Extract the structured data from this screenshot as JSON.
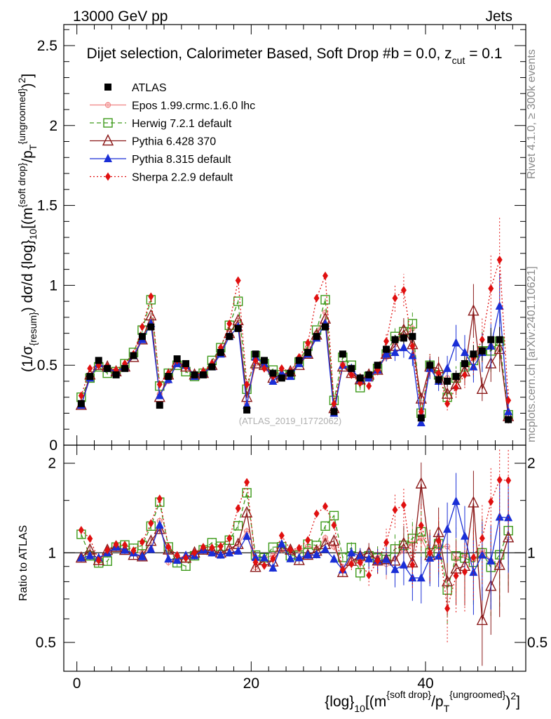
{
  "header": {
    "energy": "13000 GeV pp",
    "process": "Jets"
  },
  "chart_data": {
    "type": "scatter",
    "title": "Dijet selection, Calorimeter Based, Soft Drop #b = 0.0, z_cut = 0.1",
    "title_parts": {
      "main": "Dijet selection, Calorimeter Based, Soft Drop #b",
      "eq": "= 0.0, z",
      "sub": "cut",
      "end": "= 0.1"
    },
    "ylabel_main": "(1/σ{resum}) dσ/d {log}10[(m{soft drop}/pT{ungroomed})2]",
    "ylabel_parts": {
      "a": "(1/σ",
      "b": "{resum}",
      "c": ") dσ/d {log}",
      "d": "10",
      "e": "[(m",
      "f": "{soft drop}",
      "g": "/p",
      "h": "T",
      "i": "{ungroomed}",
      "j": ")",
      "k": "2",
      "l": "]"
    },
    "ylabel_ratio": "Ratio to ATLAS",
    "xlabel_parts": {
      "a": "{log}",
      "b": "10",
      "c": "[(m",
      "d": "{soft drop}",
      "e": "/p",
      "f": "T",
      "g": "{ungroomed}",
      "h": ")",
      "i": "2",
      "j": "]"
    },
    "xlim": [
      -1.5,
      51.5
    ],
    "ylim_main": [
      0,
      2.5
    ],
    "ylim_ratio": [
      0.4,
      2.3
    ],
    "x_ticks": [
      "0",
      "20",
      "40"
    ],
    "y_ticks_main": [
      "0",
      "0.5",
      "1",
      "1.5",
      "2",
      "2.5"
    ],
    "y_ticks_ratio": [
      "0.5",
      "1",
      "2"
    ],
    "watermark": "(ATLAS_2019_I1772062)",
    "side_text_top": "Rivet 4.1.0, ≥ 300k events",
    "side_text_bottom": "mcplots.cern.ch [arXiv:2401.10621]",
    "x": [
      0.5,
      1.5,
      2.5,
      3.5,
      4.5,
      5.5,
      6.5,
      7.5,
      8.5,
      9.5,
      10.5,
      11.5,
      12.5,
      13.5,
      14.5,
      15.5,
      16.5,
      17.5,
      18.5,
      19.5,
      20.5,
      21.5,
      22.5,
      23.5,
      24.5,
      25.5,
      26.5,
      27.5,
      28.5,
      29.5,
      30.5,
      31.5,
      32.5,
      33.5,
      34.5,
      35.5,
      36.5,
      37.5,
      38.5,
      39.5,
      40.5,
      41.5,
      42.5,
      43.5,
      44.5,
      45.5,
      46.5,
      47.5,
      48.5,
      49.5
    ],
    "data": {
      "name": "ATLAS",
      "values": [
        0.26,
        0.43,
        0.53,
        0.48,
        0.44,
        0.48,
        0.56,
        0.68,
        0.74,
        0.25,
        0.43,
        0.54,
        0.51,
        0.44,
        0.44,
        0.49,
        0.58,
        0.68,
        0.73,
        0.22,
        0.57,
        0.53,
        0.45,
        0.42,
        0.45,
        0.53,
        0.58,
        0.68,
        0.74,
        0.21,
        0.57,
        0.48,
        0.42,
        0.44,
        0.5,
        0.6,
        0.66,
        0.67,
        0.68,
        0.17,
        0.5,
        0.41,
        0.4,
        0.43,
        0.51,
        0.57,
        0.59,
        0.66,
        0.66,
        0.16
      ]
    },
    "series": [
      {
        "name": "Epos 1.99.crmc.1.6.0 lhc",
        "color": "#f08080",
        "style": "solid",
        "marker": "cross",
        "values": [
          0.25,
          0.42,
          0.5,
          0.48,
          0.46,
          0.49,
          0.56,
          0.68,
          0.76,
          0.32,
          0.4,
          0.51,
          0.49,
          0.44,
          0.45,
          0.5,
          0.58,
          0.7,
          0.78,
          0.26,
          0.51,
          0.51,
          0.44,
          0.43,
          0.46,
          0.54,
          0.61,
          0.7,
          0.83,
          0.22,
          0.51,
          0.45,
          0.39,
          0.42,
          0.48,
          0.55,
          0.63,
          0.68,
          0.73,
          0.19,
          0.49,
          0.43,
          0.42,
          0.41,
          0.5,
          0.54,
          0.6,
          0.62,
          0.6,
          0.18
        ]
      },
      {
        "name": "Herwig 7.2.1 default",
        "color": "#3d9a1a",
        "style": "dashed",
        "marker": "square-open",
        "values": [
          0.3,
          0.42,
          0.49,
          0.45,
          0.46,
          0.51,
          0.58,
          0.72,
          0.91,
          0.37,
          0.45,
          0.5,
          0.46,
          0.43,
          0.45,
          0.53,
          0.61,
          0.75,
          0.9,
          0.35,
          0.56,
          0.51,
          0.47,
          0.44,
          0.44,
          0.52,
          0.62,
          0.72,
          0.91,
          0.28,
          0.55,
          0.5,
          0.36,
          0.43,
          0.48,
          0.57,
          0.68,
          0.71,
          0.76,
          0.2,
          0.5,
          0.44,
          0.3,
          0.42,
          0.49,
          0.53,
          0.59,
          0.59,
          0.65,
          0.19
        ]
      },
      {
        "name": "Pythia 6.428 370",
        "color": "#8b1a1a",
        "style": "solid",
        "marker": "triangle-open",
        "values": [
          0.25,
          0.44,
          0.5,
          0.49,
          0.46,
          0.49,
          0.55,
          0.66,
          0.81,
          0.3,
          0.44,
          0.52,
          0.49,
          0.44,
          0.45,
          0.5,
          0.58,
          0.7,
          0.78,
          0.3,
          0.51,
          0.5,
          0.42,
          0.44,
          0.46,
          0.5,
          0.57,
          0.69,
          0.79,
          0.23,
          0.49,
          0.45,
          0.41,
          0.44,
          0.47,
          0.57,
          0.62,
          0.72,
          0.63,
          0.29,
          0.49,
          0.48,
          0.32,
          0.38,
          0.46,
          0.84,
          0.35,
          0.51,
          0.6,
          0.18
        ]
      },
      {
        "name": "Pythia 8.315 default",
        "color": "#1a2ed6",
        "style": "solid",
        "marker": "triangle",
        "values": [
          0.25,
          0.42,
          0.51,
          0.48,
          0.46,
          0.49,
          0.56,
          0.66,
          0.76,
          0.31,
          0.41,
          0.51,
          0.5,
          0.43,
          0.45,
          0.49,
          0.57,
          0.68,
          0.74,
          0.25,
          0.55,
          0.51,
          0.4,
          0.45,
          0.43,
          0.51,
          0.57,
          0.67,
          0.76,
          0.2,
          0.5,
          0.48,
          0.41,
          0.42,
          0.47,
          0.57,
          0.58,
          0.61,
          0.56,
          0.14,
          0.48,
          0.4,
          0.48,
          0.64,
          0.58,
          0.49,
          0.58,
          0.62,
          0.87,
          0.21
        ]
      },
      {
        "name": "Sherpa 2.2.9 default",
        "color": "#e01010",
        "style": "dotted",
        "marker": "diamond",
        "values": [
          0.31,
          0.48,
          0.5,
          0.49,
          0.47,
          0.51,
          0.57,
          0.74,
          0.93,
          0.38,
          0.45,
          0.53,
          0.49,
          0.44,
          0.46,
          0.51,
          0.61,
          0.76,
          1.03,
          0.38,
          0.53,
          0.48,
          0.43,
          0.48,
          0.46,
          0.55,
          0.64,
          0.92,
          1.06,
          0.26,
          0.5,
          0.44,
          0.39,
          0.37,
          0.47,
          0.65,
          0.92,
          0.97,
          0.62,
          0.21,
          0.5,
          0.45,
          0.26,
          0.36,
          0.44,
          0.55,
          0.66,
          0.98,
          1.16,
          0.28
        ]
      }
    ],
    "legend": [
      "ATLAS",
      "Epos 1.99.crmc.1.6.0 lhc",
      "Herwig 7.2.1 default",
      "Pythia 6.428 370",
      "Pythia 8.315 default",
      "Sherpa 2.2.9 default"
    ]
  }
}
